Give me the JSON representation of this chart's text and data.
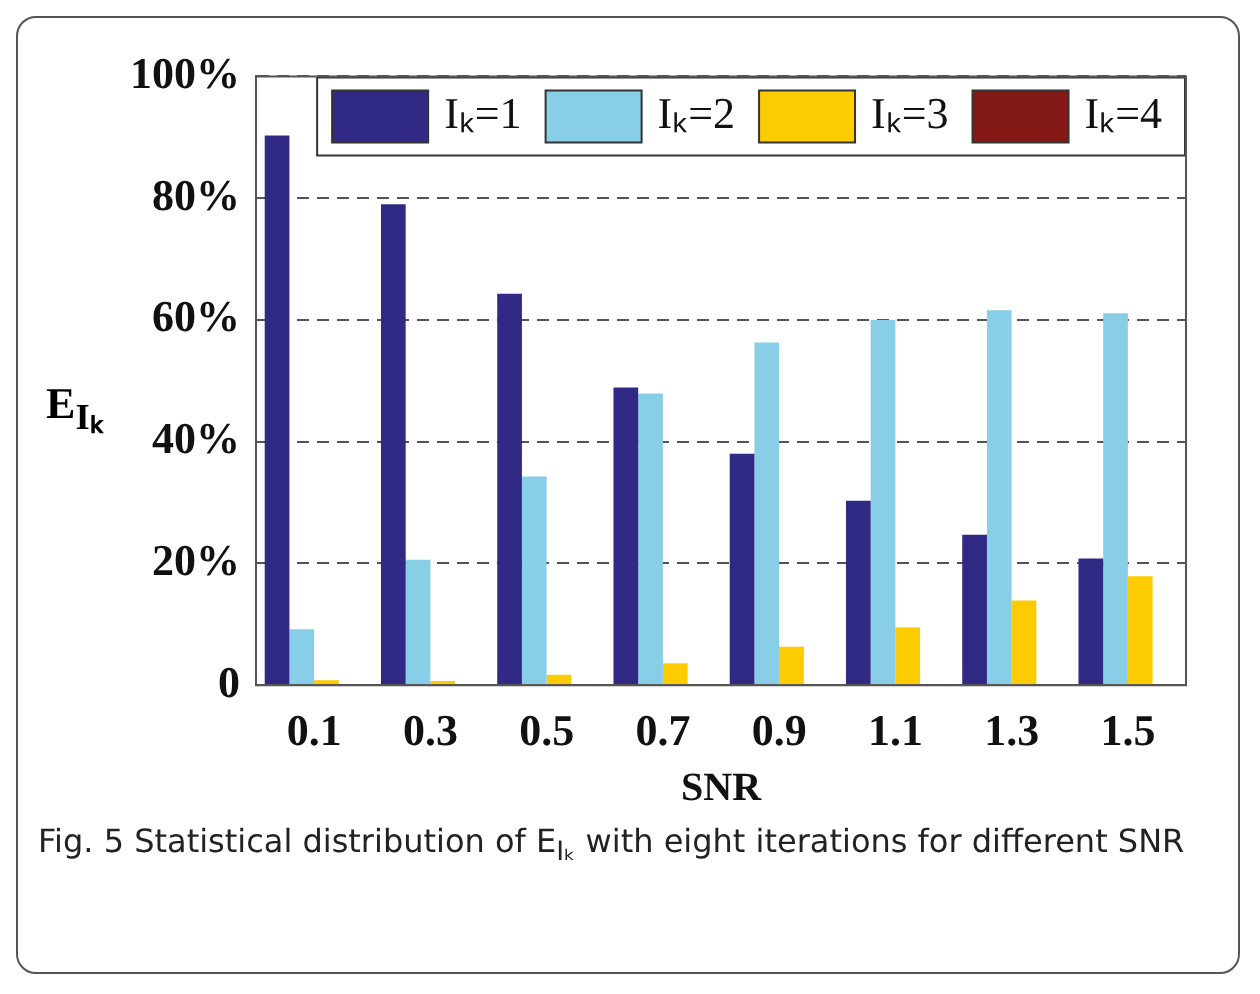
{
  "chart_data": {
    "type": "bar",
    "xlabel": "SNR",
    "ylabel": "E$_{Iₖ}$",
    "categories": [
      "0.1",
      "0.3",
      "0.5",
      "0.7",
      "0.9",
      "1.1",
      "1.3",
      "1.5"
    ],
    "series": [
      {
        "name": "Iₖ=1",
        "color": "#302a85",
        "values": [
          90.3,
          79,
          64.3,
          48.9,
          38,
          30.3,
          24.7,
          20.8
        ]
      },
      {
        "name": "Iₖ=2",
        "color": "#87cee6",
        "values": [
          9.2,
          20.6,
          34.3,
          47.9,
          56.3,
          60,
          61.6,
          61.1
        ]
      },
      {
        "name": "Iₖ=3",
        "color": "#fccb00",
        "values": [
          0.8,
          0.7,
          1.7,
          3.6,
          6.3,
          9.5,
          13.9,
          17.9
        ]
      },
      {
        "name": "Iₖ=4",
        "color": "#841a15",
        "values": [
          0.2,
          0.2,
          0.2,
          0.2,
          0.2,
          0.2,
          0.2,
          0.2
        ]
      }
    ],
    "ylim": [
      0,
      100
    ],
    "yticks": [
      0,
      {
        "value": 20,
        "label": "20%"
      },
      {
        "value": 40,
        "label": "40%"
      },
      {
        "value": 60,
        "label": "60%"
      },
      {
        "value": 80,
        "label": "80%"
      },
      {
        "value": 100,
        "label": "100%"
      }
    ],
    "grid": "y",
    "legend": "top right",
    "annotations": [
      "Fig. 5 Statistical distribution of E$_{Iₖ}$ with eight iterations for different SNR"
    ]
  }
}
